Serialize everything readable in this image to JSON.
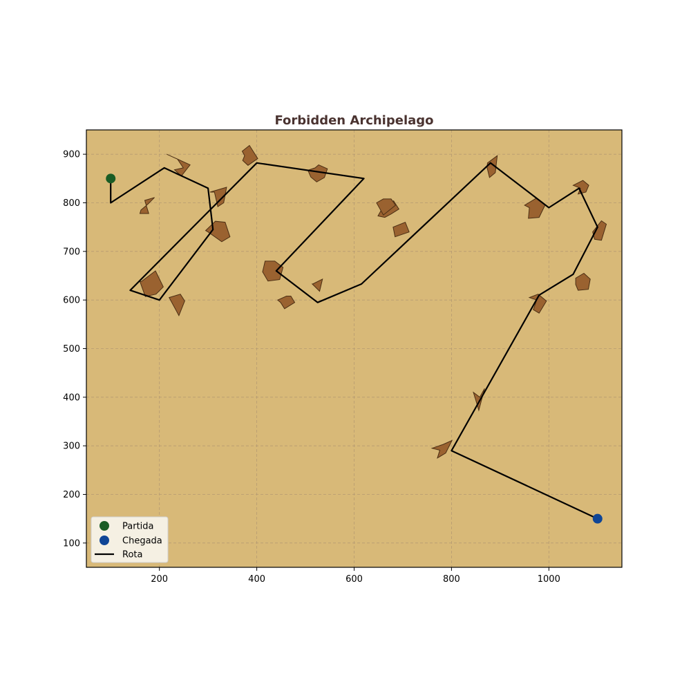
{
  "chart_data": {
    "type": "line",
    "title": "Forbidden Archipelago",
    "xlabel": "",
    "ylabel": "",
    "xlim": [
      50,
      1150
    ],
    "ylim": [
      50,
      950
    ],
    "x_ticks": [
      200,
      400,
      600,
      800,
      1000
    ],
    "y_ticks": [
      100,
      200,
      300,
      400,
      500,
      600,
      700,
      800,
      900
    ],
    "grid": true,
    "legend_placement": "lower-left",
    "colors": {
      "background": "#d8b978",
      "island_fill": "#9a6230",
      "island_edge": "#4a2e14",
      "route": "#000000",
      "start": "#1a5c24",
      "end": "#0f4596",
      "grid": "#b59a72",
      "title": "#4a3330"
    },
    "legend": [
      {
        "label": "Partida",
        "kind": "start"
      },
      {
        "label": "Chegada",
        "kind": "end"
      },
      {
        "label": "Rota",
        "kind": "route"
      }
    ],
    "start": {
      "x": 100,
      "y": 850
    },
    "end": {
      "x": 1100,
      "y": 150
    },
    "route": [
      [
        100,
        850
      ],
      [
        100,
        800
      ],
      [
        210,
        872
      ],
      [
        300,
        830
      ],
      [
        310,
        745
      ],
      [
        200,
        600
      ],
      [
        140,
        620
      ],
      [
        400,
        882
      ],
      [
        620,
        850
      ],
      [
        440,
        660
      ],
      [
        525,
        595
      ],
      [
        615,
        633
      ],
      [
        880,
        882
      ],
      [
        1000,
        790
      ],
      [
        1062,
        830
      ],
      [
        1100,
        750
      ],
      [
        1050,
        653
      ],
      [
        980,
        610
      ],
      [
        800,
        290
      ],
      [
        1100,
        150
      ]
    ],
    "islands": [
      [
        [
          215,
          900
        ],
        [
          237,
          890
        ],
        [
          249,
          872
        ],
        [
          231,
          868
        ],
        [
          245,
          855
        ],
        [
          263,
          878
        ]
      ],
      [
        [
          162,
          785
        ],
        [
          176,
          797
        ],
        [
          190,
          811
        ],
        [
          170,
          805
        ],
        [
          178,
          778
        ],
        [
          160,
          778
        ]
      ],
      [
        [
          304,
          822
        ],
        [
          338,
          832
        ],
        [
          332,
          800
        ],
        [
          320,
          792
        ],
        [
          313,
          822
        ]
      ],
      [
        [
          295,
          743
        ],
        [
          315,
          762
        ],
        [
          335,
          760
        ],
        [
          345,
          730
        ],
        [
          328,
          720
        ],
        [
          300,
          740
        ]
      ],
      [
        [
          163,
          638
        ],
        [
          192,
          660
        ],
        [
          208,
          627
        ],
        [
          193,
          612
        ],
        [
          171,
          607
        ],
        [
          160,
          638
        ]
      ],
      [
        [
          220,
          605
        ],
        [
          240,
          568
        ],
        [
          252,
          598
        ],
        [
          243,
          612
        ]
      ],
      [
        [
          370,
          906
        ],
        [
          385,
          918
        ],
        [
          402,
          891
        ],
        [
          382,
          877
        ],
        [
          371,
          887
        ],
        [
          375,
          897
        ]
      ],
      [
        [
          505,
          867
        ],
        [
          520,
          872
        ],
        [
          527,
          878
        ],
        [
          545,
          870
        ],
        [
          539,
          852
        ],
        [
          523,
          843
        ],
        [
          511,
          853
        ]
      ],
      [
        [
          437,
          680
        ],
        [
          454,
          667
        ],
        [
          447,
          642
        ],
        [
          423,
          639
        ],
        [
          412,
          658
        ],
        [
          417,
          680
        ]
      ],
      [
        [
          443,
          600
        ],
        [
          461,
          608
        ],
        [
          470,
          608
        ],
        [
          478,
          595
        ],
        [
          457,
          582
        ],
        [
          449,
          595
        ]
      ],
      [
        [
          514,
          633
        ],
        [
          529,
          618
        ],
        [
          535,
          643
        ],
        [
          515,
          633
        ]
      ],
      [
        [
          649,
          773
        ],
        [
          659,
          791
        ],
        [
          681,
          804
        ],
        [
          692,
          787
        ],
        [
          676,
          777
        ],
        [
          663,
          770
        ]
      ],
      [
        [
          646,
          800
        ],
        [
          660,
          808
        ],
        [
          676,
          808
        ],
        [
          685,
          795
        ],
        [
          670,
          783
        ],
        [
          660,
          775
        ]
      ],
      [
        [
          684,
          730
        ],
        [
          713,
          740
        ],
        [
          705,
          760
        ],
        [
          680,
          750
        ]
      ],
      [
        [
          874,
          882
        ],
        [
          894,
          897
        ],
        [
          890,
          862
        ],
        [
          878,
          852
        ],
        [
          873,
          873
        ]
      ],
      [
        [
          950,
          795
        ],
        [
          975,
          810
        ],
        [
          992,
          795
        ],
        [
          980,
          770
        ],
        [
          958,
          768
        ],
        [
          960,
          790
        ]
      ],
      [
        [
          1050,
          836
        ],
        [
          1070,
          846
        ],
        [
          1082,
          836
        ],
        [
          1076,
          822
        ],
        [
          1060,
          818
        ],
        [
          1065,
          830
        ]
      ],
      [
        [
          1090,
          740
        ],
        [
          1108,
          763
        ],
        [
          1118,
          756
        ],
        [
          1108,
          723
        ],
        [
          1094,
          725
        ]
      ],
      [
        [
          1055,
          645
        ],
        [
          1072,
          655
        ],
        [
          1085,
          643
        ],
        [
          1081,
          622
        ],
        [
          1060,
          620
        ],
        [
          1055,
          632
        ]
      ],
      [
        [
          960,
          605
        ],
        [
          978,
          612
        ],
        [
          995,
          598
        ],
        [
          980,
          573
        ],
        [
          968,
          580
        ],
        [
          975,
          600
        ]
      ],
      [
        [
          845,
          410
        ],
        [
          858,
          400
        ],
        [
          868,
          418
        ],
        [
          856,
          373
        ],
        [
          849,
          397
        ]
      ],
      [
        [
          760,
          295
        ],
        [
          783,
          303
        ],
        [
          801,
          311
        ],
        [
          788,
          285
        ],
        [
          771,
          275
        ],
        [
          776,
          291
        ]
      ]
    ]
  }
}
